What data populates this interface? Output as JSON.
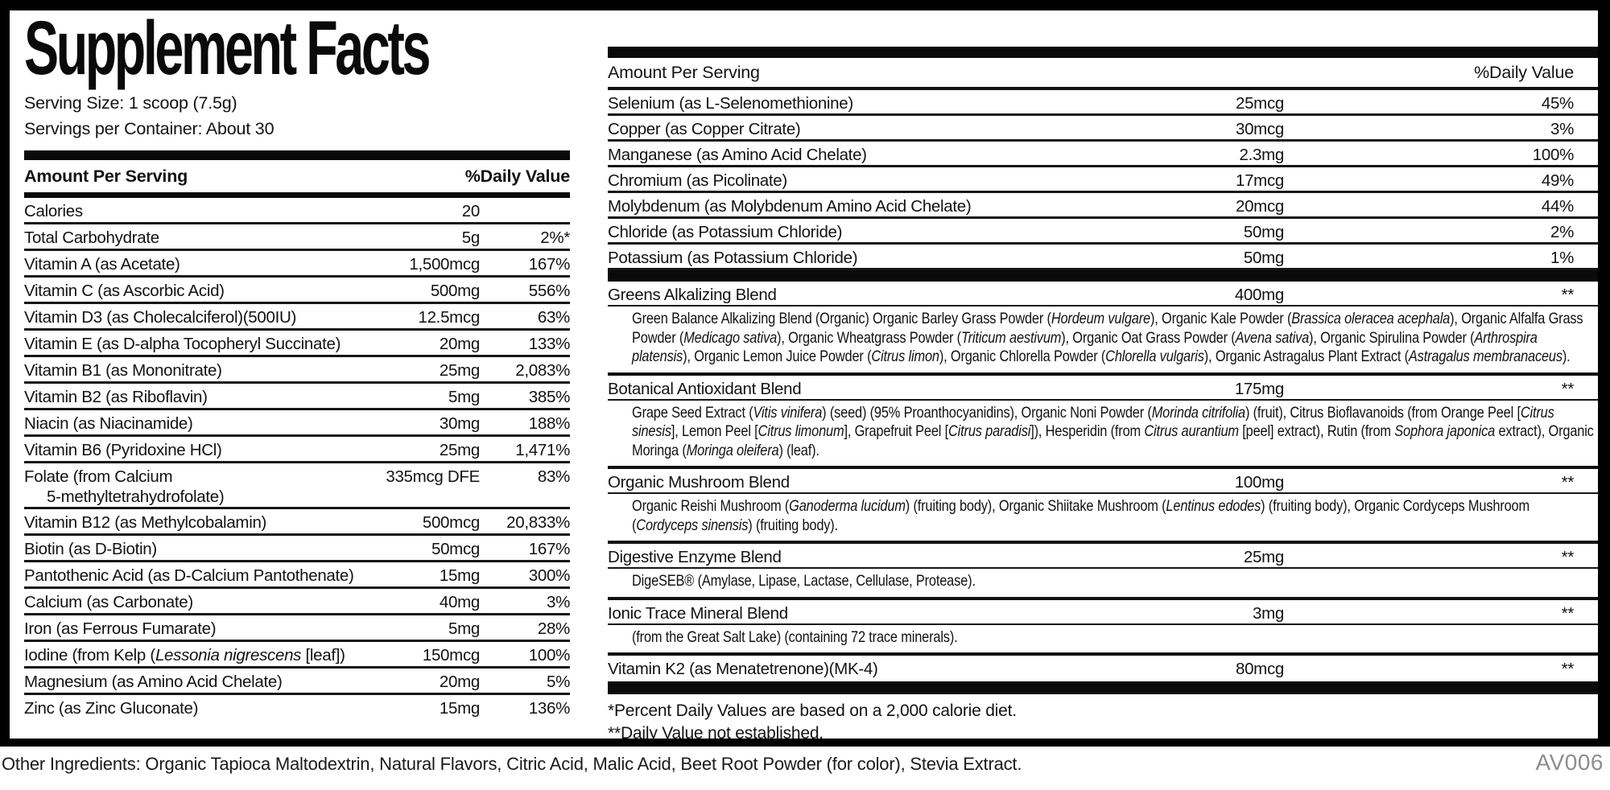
{
  "title": "Supplement Facts",
  "serving": {
    "size": "Serving Size: 1 scoop (7.5g)",
    "per_container": "Servings per Container: About 30"
  },
  "left_table": {
    "header": {
      "amount_label": "Amount Per Serving",
      "dv_label": "%Daily Value"
    },
    "rows": [
      {
        "name": "Calories",
        "amount": "20",
        "dv": ""
      },
      {
        "name": "Total Carbohydrate",
        "amount": "5g",
        "dv": "2%*"
      },
      {
        "name": "Vitamin A (as Acetate)",
        "amount": "1,500mcg",
        "dv": "167%"
      },
      {
        "name": "Vitamin C (as Ascorbic Acid)",
        "amount": "500mg",
        "dv": "556%"
      },
      {
        "name": "Vitamin D3 (as Cholecalciferol)(500IU)",
        "amount": "12.5mcg",
        "dv": "63%"
      },
      {
        "name": "Vitamin E (as D-alpha Tocopheryl Succinate)",
        "amount": "20mg",
        "dv": "133%"
      },
      {
        "name": "Vitamin B1 (as Mononitrate)",
        "amount": "25mg",
        "dv": "2,083%"
      },
      {
        "name": "Vitamin B2 (as Riboflavin)",
        "amount": "5mg",
        "dv": "385%"
      },
      {
        "name": "Niacin (as Niacinamide)",
        "amount": "30mg",
        "dv": "188%"
      },
      {
        "name": "Vitamin B6 (Pyridoxine HCl)",
        "amount": "25mg",
        "dv": "1,471%"
      },
      {
        "name": "Folate (from Calcium\n5-methyltetrahydrofolate)",
        "amount": "335mcg DFE",
        "dv": "83%"
      },
      {
        "name": "Vitamin B12 (as Methylcobalamin)",
        "amount": "500mcg",
        "dv": "20,833%"
      },
      {
        "name": "Biotin (as D-Biotin)",
        "amount": "50mcg",
        "dv": "167%"
      },
      {
        "name": "Pantothenic Acid (as D-Calcium Pantothenate)",
        "amount": "15mg",
        "dv": "300%"
      },
      {
        "name": "Calcium (as Carbonate)",
        "amount": "40mg",
        "dv": "3%"
      },
      {
        "name": "Iron (as Ferrous Fumarate)",
        "amount": "5mg",
        "dv": "28%"
      },
      {
        "name": "Iodine (from Kelp (*Lessonia nigrescens* [leaf])",
        "amount": "150mcg",
        "dv": "100%"
      },
      {
        "name": "Magnesium (as Amino Acid Chelate)",
        "amount": "20mg",
        "dv": "5%"
      },
      {
        "name": "Zinc (as Zinc Gluconate)",
        "amount": "15mg",
        "dv": "136%"
      }
    ]
  },
  "right_table": {
    "header": {
      "amount_label": "Amount Per Serving",
      "dv_label": "%Daily Value"
    },
    "rows": [
      {
        "name": "Selenium (as L-Selenomethionine)",
        "amount": "25mcg",
        "dv": "45%"
      },
      {
        "name": "Copper (as Copper Citrate)",
        "amount": "30mcg",
        "dv": "3%"
      },
      {
        "name": "Manganese (as Amino Acid Chelate)",
        "amount": "2.3mg",
        "dv": "100%"
      },
      {
        "name": "Chromium (as Picolinate)",
        "amount": "17mcg",
        "dv": "49%"
      },
      {
        "name": "Molybdenum (as Molybdenum Amino Acid Chelate)",
        "amount": "20mcg",
        "dv": "44%"
      },
      {
        "name": "Chloride (as Potassium Chloride)",
        "amount": "50mg",
        "dv": "2%"
      },
      {
        "name": "Potassium (as Potassium Chloride)",
        "amount": "50mg",
        "dv": "1%"
      }
    ],
    "blends": [
      {
        "name": "Greens Alkalizing Blend",
        "amount": "400mg",
        "dv": "**",
        "desc": "Green Balance Alkalizing Blend (Organic) Organic Barley Grass Powder (*Hordeum vulgare*), Organic Kale Powder (*Brassica oleracea acephala*), Organic Alfalfa Grass Powder (*Medicago sativa*), Organic Wheatgrass Powder (*Triticum aestivum*), Organic Oat Grass Powder (*Avena sativa*), Organic Spirulina Powder (*Arthrospira platensis*), Organic Lemon Juice Powder (*Citrus limon*), Organic Chlorella Powder (*Chlorella vulgaris*), Organic Astragalus Plant Extract (*Astragalus membranaceus*)."
      },
      {
        "name": "Botanical Antioxidant Blend",
        "amount": "175mg",
        "dv": "**",
        "desc": "Grape Seed Extract (*Vitis vinifera*) (seed) (95% Proanthocyanidins), Organic Noni Powder (*Morinda citrifolia*) (fruit), Citrus Bioflavanoids (from Orange Peel [*Citrus sinesis*], Lemon Peel [*Citrus limonum*], Grapefruit Peel [*Citrus paradisi*]), Hesperidin (from *Citrus aurantium* [peel] extract), Rutin (from *Sophora japonica* extract), Organic Moringa (*Moringa oleifera*) (leaf)."
      },
      {
        "name": "Organic Mushroom Blend",
        "amount": "100mg",
        "dv": "**",
        "desc": "Organic Reishi Mushroom (*Ganoderma lucidum*) (fruiting body), Organic Shiitake Mushroom (*Lentinus edodes*) (fruiting body), Organic Cordyceps Mushroom (*Cordyceps sinensis*) (fruiting body)."
      },
      {
        "name": "Digestive Enzyme Blend",
        "amount": "25mg",
        "dv": "**",
        "desc": "DigeSEB® (Amylase, Lipase, Lactase, Cellulase, Protease)."
      },
      {
        "name": "Ionic Trace Mineral Blend",
        "amount": "3mg",
        "dv": "**",
        "desc": "(from the Great Salt Lake) (containing 72 trace minerals)."
      },
      {
        "name": "Vitamin K2 (as Menatetrenone)(MK-4)",
        "amount": "80mcg",
        "dv": "**",
        "desc": ""
      }
    ],
    "footnotes": [
      "*Percent Daily Values are based on a 2,000 calorie diet.",
      "**Daily Value not established."
    ]
  },
  "footer": {
    "other_ingredients": "Other Ingredients: Organic Tapioca Maltodextrin, Natural Flavors, Citric Acid, Malic Acid, Beet Root Powder (for color), Stevia Extract.",
    "code": "AV006"
  },
  "colors": {
    "text": "#121212",
    "bar": "#0a0a0a",
    "code_gray": "#8e8e8e"
  }
}
